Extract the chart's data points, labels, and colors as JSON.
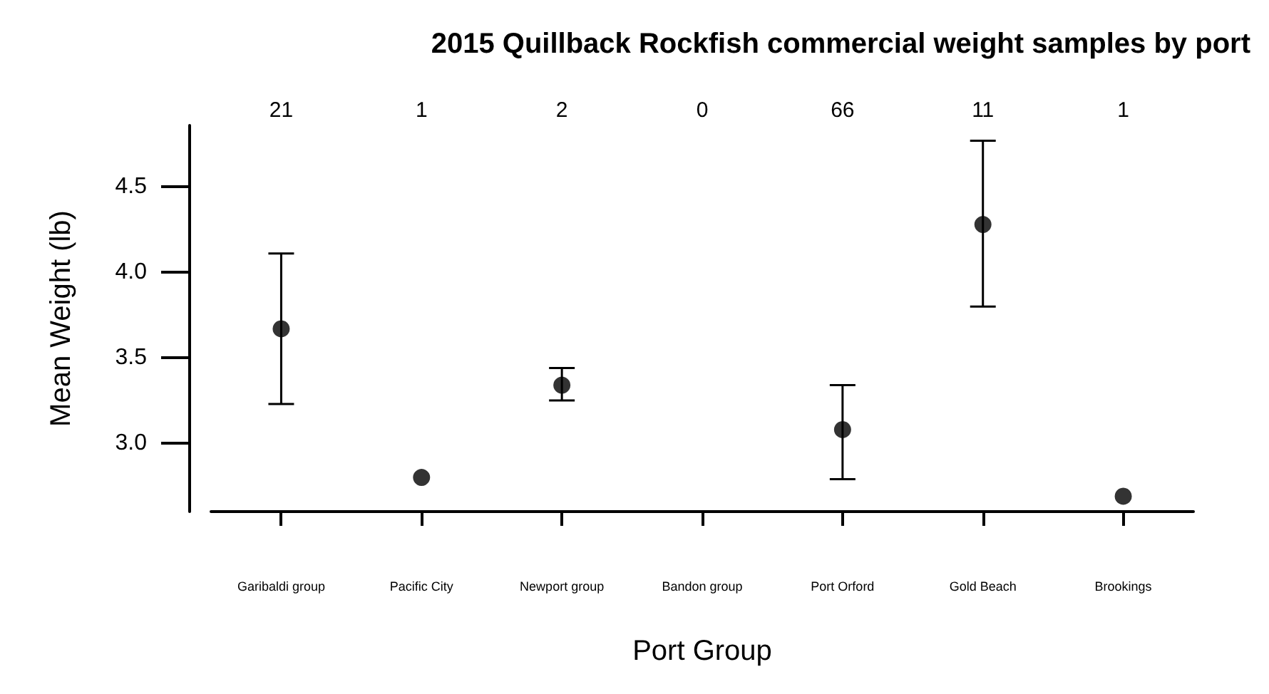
{
  "chart_data": {
    "type": "scatter",
    "title": "2015 Quillback Rockfish commercial weight samples by port",
    "xlabel": "Port Group",
    "ylabel": "Mean Weight (lb)",
    "categories": [
      "Garibaldi group",
      "Pacific City",
      "Newport group",
      "Bandon group",
      "Port Orford",
      "Gold Beach",
      "Brookings"
    ],
    "series": [
      {
        "color": "#000000",
        "values": [
          3.67,
          2.8,
          3.34,
          null,
          3.08,
          4.28,
          2.69
        ],
        "errors": [
          [
            3.23,
            4.11
          ],
          null,
          [
            3.25,
            3.44
          ],
          null,
          [
            2.79,
            3.34
          ],
          [
            3.8,
            4.77
          ],
          null
        ]
      }
    ],
    "annotations": [
      "21",
      "1",
      "2",
      "0",
      "66",
      "11",
      "1"
    ],
    "ylim": [
      2.6,
      4.86
    ],
    "yticks": [
      {
        "value": 3,
        "label": "3.0"
      },
      3.5,
      {
        "value": 4,
        "label": "4.0"
      },
      4.5
    ],
    "grid": false,
    "marker": "circle"
  }
}
